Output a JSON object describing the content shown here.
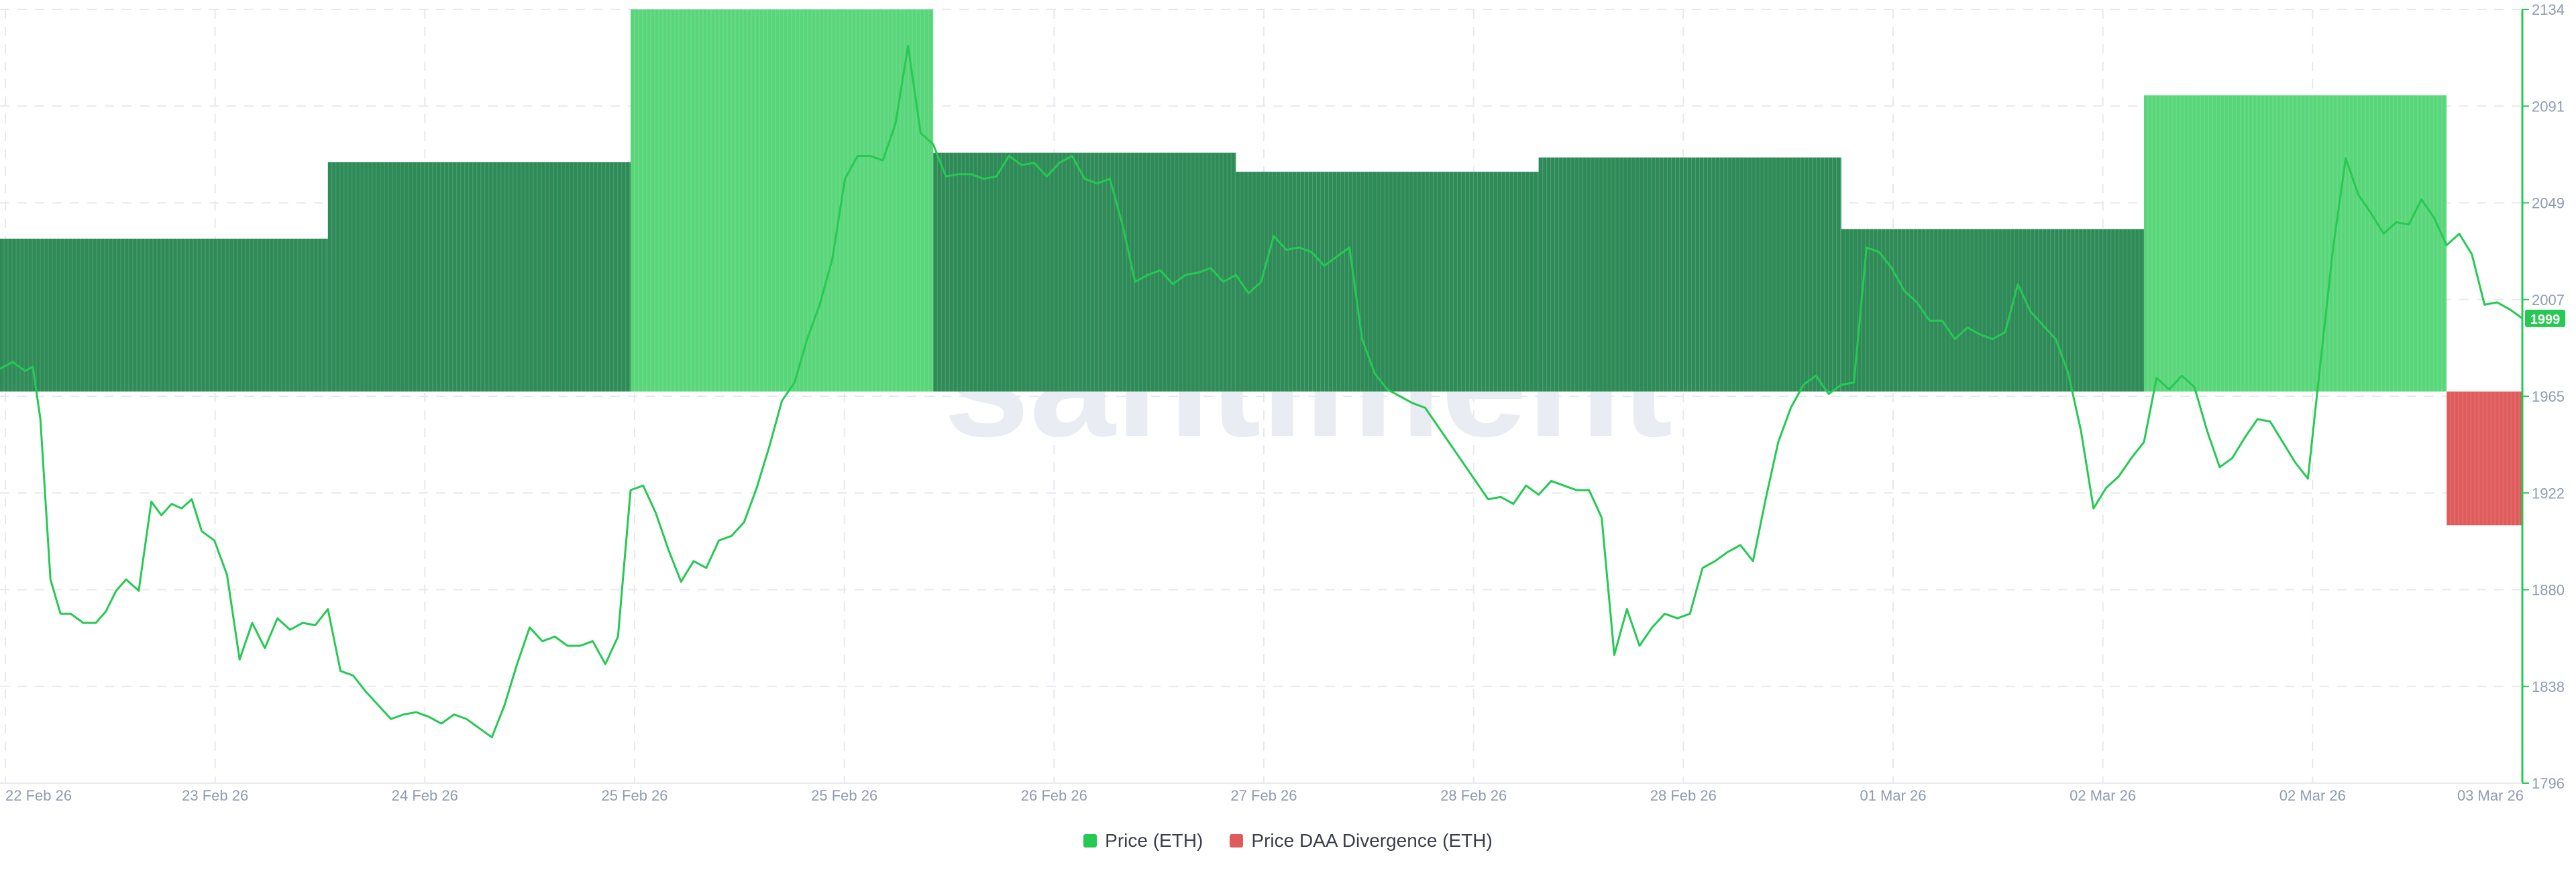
{
  "watermark": "santiment",
  "colors": {
    "price_line": "#26c953",
    "divergence_positive_dark": "#2e8b57",
    "divergence_positive_light": "#5ad67a",
    "divergence_negative": "#e05c5c",
    "axis_text": "#8f9bb3",
    "grid": "#e6e9ef",
    "price_badge_bg": "#26c953",
    "watermark": "#e9ecf3"
  },
  "chart_data": {
    "type": "line",
    "x_tick_labels": [
      "22 Feb 26",
      "23 Feb 26",
      "24 Feb 26",
      "25 Feb 26",
      "25 Feb 26",
      "26 Feb 26",
      "27 Feb 26",
      "28 Feb 26",
      "28 Feb 26",
      "01 Mar 26",
      "02 Mar 26",
      "02 Mar 26",
      "03 Mar 26"
    ],
    "y_tick_labels": [
      "2134",
      "2091",
      "2049",
      "2007",
      "1965",
      "1922",
      "1880",
      "1838",
      "1796"
    ],
    "y_range": [
      1796,
      2134
    ],
    "x_range": [
      0,
      100
    ],
    "grid": true,
    "legend_position": "bottom-center",
    "current_price_label": "1999",
    "series": [
      {
        "name": "Price (ETH)",
        "color": "#26c953",
        "points": [
          [
            0,
            1977
          ],
          [
            0.5,
            1980
          ],
          [
            1,
            1976
          ],
          [
            1.3,
            1978
          ],
          [
            1.6,
            1955
          ],
          [
            2,
            1885
          ],
          [
            2.4,
            1870
          ],
          [
            2.8,
            1870
          ],
          [
            3.3,
            1866
          ],
          [
            3.8,
            1866
          ],
          [
            4.2,
            1871
          ],
          [
            4.6,
            1880
          ],
          [
            5,
            1885
          ],
          [
            5.5,
            1880
          ],
          [
            6,
            1919
          ],
          [
            6.4,
            1913
          ],
          [
            6.8,
            1918
          ],
          [
            7.2,
            1916
          ],
          [
            7.6,
            1920
          ],
          [
            8,
            1906
          ],
          [
            8.5,
            1902
          ],
          [
            9,
            1887
          ],
          [
            9.5,
            1850
          ],
          [
            10,
            1866
          ],
          [
            10.5,
            1855
          ],
          [
            11,
            1868
          ],
          [
            11.5,
            1863
          ],
          [
            12,
            1866
          ],
          [
            12.5,
            1865
          ],
          [
            13,
            1872
          ],
          [
            13.5,
            1845
          ],
          [
            14,
            1843
          ],
          [
            14.5,
            1836
          ],
          [
            15,
            1830
          ],
          [
            15.5,
            1824
          ],
          [
            16,
            1826
          ],
          [
            16.5,
            1827
          ],
          [
            17,
            1825
          ],
          [
            17.5,
            1822
          ],
          [
            18,
            1826
          ],
          [
            18.5,
            1824
          ],
          [
            19,
            1820
          ],
          [
            19.5,
            1816
          ],
          [
            20,
            1830
          ],
          [
            20.5,
            1848
          ],
          [
            21,
            1864
          ],
          [
            21.5,
            1858
          ],
          [
            22,
            1860
          ],
          [
            22.5,
            1856
          ],
          [
            23,
            1856
          ],
          [
            23.5,
            1858
          ],
          [
            24,
            1848
          ],
          [
            24.5,
            1860
          ],
          [
            25,
            1924
          ],
          [
            25.5,
            1926
          ],
          [
            26,
            1914
          ],
          [
            26.5,
            1898
          ],
          [
            27,
            1884
          ],
          [
            27.5,
            1893
          ],
          [
            28,
            1890
          ],
          [
            28.5,
            1902
          ],
          [
            29,
            1904
          ],
          [
            29.5,
            1910
          ],
          [
            30,
            1925
          ],
          [
            30.5,
            1943
          ],
          [
            31,
            1963
          ],
          [
            31.5,
            1971
          ],
          [
            32,
            1990
          ],
          [
            32.5,
            2005
          ],
          [
            33,
            2025
          ],
          [
            33.5,
            2060
          ],
          [
            34,
            2070
          ],
          [
            34.5,
            2070
          ],
          [
            35,
            2068
          ],
          [
            35.5,
            2084
          ],
          [
            36,
            2118
          ],
          [
            36.5,
            2080
          ],
          [
            37,
            2075
          ],
          [
            37.5,
            2061
          ],
          [
            38,
            2062
          ],
          [
            38.5,
            2062
          ],
          [
            39,
            2060
          ],
          [
            39.5,
            2061
          ],
          [
            40,
            2070
          ],
          [
            40.5,
            2066
          ],
          [
            41,
            2067
          ],
          [
            41.5,
            2061
          ],
          [
            42,
            2067
          ],
          [
            42.5,
            2070
          ],
          [
            43,
            2060
          ],
          [
            43.5,
            2058
          ],
          [
            44,
            2060
          ],
          [
            44.5,
            2040
          ],
          [
            45,
            2015
          ],
          [
            45.5,
            2018
          ],
          [
            46,
            2020
          ],
          [
            46.5,
            2014
          ],
          [
            47,
            2018
          ],
          [
            47.5,
            2019
          ],
          [
            48,
            2021
          ],
          [
            48.5,
            2015
          ],
          [
            49,
            2018
          ],
          [
            49.5,
            2010
          ],
          [
            50,
            2015
          ],
          [
            50.5,
            2035
          ],
          [
            51,
            2029
          ],
          [
            51.5,
            2030
          ],
          [
            52,
            2028
          ],
          [
            52.5,
            2022
          ],
          [
            53,
            2026
          ],
          [
            53.5,
            2030
          ],
          [
            54,
            1990
          ],
          [
            54.5,
            1975
          ],
          [
            55,
            1968
          ],
          [
            55.5,
            1965
          ],
          [
            56,
            1962
          ],
          [
            56.5,
            1960
          ],
          [
            57,
            1952
          ],
          [
            57.5,
            1944
          ],
          [
            58,
            1936
          ],
          [
            58.5,
            1928
          ],
          [
            59,
            1920
          ],
          [
            59.5,
            1921
          ],
          [
            60,
            1918
          ],
          [
            60.5,
            1926
          ],
          [
            61,
            1922
          ],
          [
            61.5,
            1928
          ],
          [
            62,
            1926
          ],
          [
            62.5,
            1924
          ],
          [
            63,
            1924
          ],
          [
            63.5,
            1912
          ],
          [
            64,
            1852
          ],
          [
            64.5,
            1872
          ],
          [
            65,
            1856
          ],
          [
            65.5,
            1864
          ],
          [
            66,
            1870
          ],
          [
            66.5,
            1868
          ],
          [
            67,
            1870
          ],
          [
            67.5,
            1890
          ],
          [
            68,
            1893
          ],
          [
            68.5,
            1897
          ],
          [
            69,
            1900
          ],
          [
            69.5,
            1893
          ],
          [
            70,
            1920
          ],
          [
            70.5,
            1945
          ],
          [
            71,
            1960
          ],
          [
            71.5,
            1970
          ],
          [
            72,
            1974
          ],
          [
            72.5,
            1966
          ],
          [
            73,
            1970
          ],
          [
            73.5,
            1971
          ],
          [
            74,
            2030
          ],
          [
            74.5,
            2028
          ],
          [
            75,
            2021
          ],
          [
            75.5,
            2011
          ],
          [
            76,
            2006
          ],
          [
            76.5,
            1998
          ],
          [
            77,
            1998
          ],
          [
            77.5,
            1990
          ],
          [
            78,
            1995
          ],
          [
            78.5,
            1992
          ],
          [
            79,
            1990
          ],
          [
            79.5,
            1993
          ],
          [
            80,
            2014
          ],
          [
            80.5,
            2002
          ],
          [
            81,
            1996
          ],
          [
            81.5,
            1990
          ],
          [
            82,
            1975
          ],
          [
            82.5,
            1950
          ],
          [
            83,
            1916
          ],
          [
            83.5,
            1925
          ],
          [
            84,
            1930
          ],
          [
            84.5,
            1938
          ],
          [
            85,
            1945
          ],
          [
            85.5,
            1973
          ],
          [
            86,
            1968
          ],
          [
            86.5,
            1974
          ],
          [
            87,
            1969
          ],
          [
            87.5,
            1950
          ],
          [
            88,
            1934
          ],
          [
            88.5,
            1938
          ],
          [
            89,
            1947
          ],
          [
            89.5,
            1955
          ],
          [
            90,
            1954
          ],
          [
            90.5,
            1945
          ],
          [
            91,
            1936
          ],
          [
            91.5,
            1929
          ],
          [
            92,
            1980
          ],
          [
            92.5,
            2030
          ],
          [
            93,
            2069
          ],
          [
            93.5,
            2053
          ],
          [
            94,
            2045
          ],
          [
            94.5,
            2036
          ],
          [
            95,
            2041
          ],
          [
            95.5,
            2040
          ],
          [
            96,
            2051
          ],
          [
            96.5,
            2043
          ],
          [
            97,
            2031
          ],
          [
            97.5,
            2036
          ],
          [
            98,
            2027
          ],
          [
            98.5,
            2005
          ],
          [
            99,
            2006
          ],
          [
            99.5,
            2003
          ],
          [
            100,
            1999
          ]
        ]
      },
      {
        "name": "Price DAA Divergence (ETH)",
        "color": "#5ad67a",
        "segments": [
          {
            "x_start": 0,
            "x_end": 13,
            "value": 1.6,
            "shade": "dark"
          },
          {
            "x_start": 13,
            "x_end": 25,
            "value": 2.4,
            "shade": "dark"
          },
          {
            "x_start": 25,
            "x_end": 37,
            "value": 4,
            "shade": "light"
          },
          {
            "x_start": 37,
            "x_end": 49,
            "value": 2.5,
            "shade": "dark"
          },
          {
            "x_start": 49,
            "x_end": 61,
            "value": 2.3,
            "shade": "dark"
          },
          {
            "x_start": 61,
            "x_end": 73,
            "value": 2.45,
            "shade": "dark"
          },
          {
            "x_start": 73,
            "x_end": 85,
            "value": 1.7,
            "shade": "dark"
          },
          {
            "x_start": 85,
            "x_end": 97,
            "value": 3.1,
            "shade": "light"
          },
          {
            "x_start": 97,
            "x_end": 100,
            "value": -1.4,
            "shade": "negative"
          }
        ],
        "y_range": [
          -4.1,
          4
        ]
      }
    ]
  },
  "legend": {
    "items": [
      {
        "label": "Price (ETH)",
        "color": "#26c953"
      },
      {
        "label": "Price DAA Divergence (ETH)",
        "color": "#e05c5c"
      }
    ]
  }
}
